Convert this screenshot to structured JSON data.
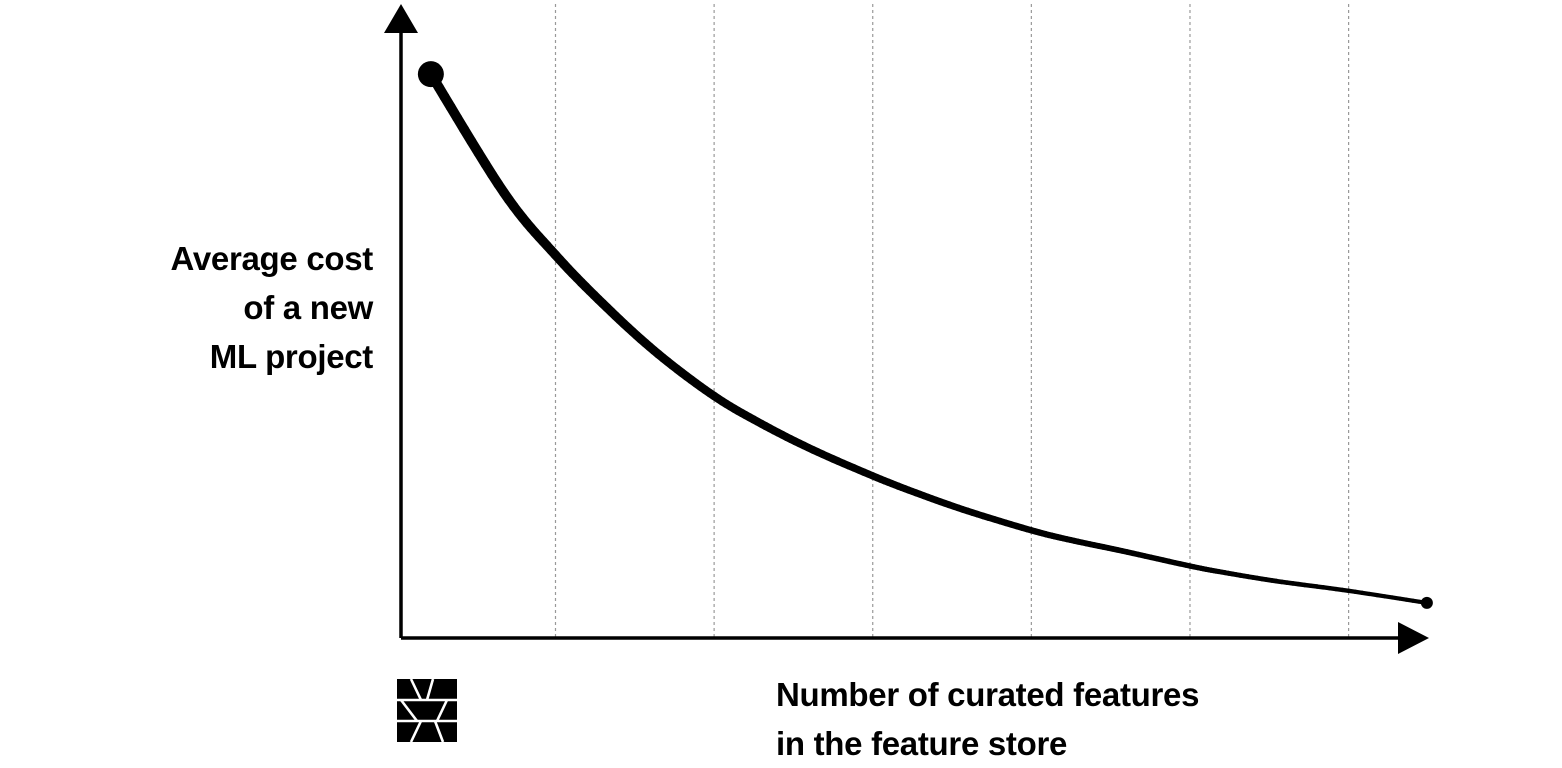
{
  "chart_data": {
    "type": "line",
    "title": "",
    "ylabel_lines": [
      "Average cost",
      "of a new",
      "ML project"
    ],
    "xlabel_lines": [
      "Number of curated features",
      "in the feature store"
    ],
    "xlim": [
      0,
      100
    ],
    "ylim": [
      0,
      100
    ],
    "x_ticks_labeled": false,
    "y_ticks_labeled": false,
    "grid": {
      "x": true,
      "y": false,
      "style": "dotted"
    },
    "x_grid_values": [
      15,
      30.4,
      45.8,
      61.2,
      76.6,
      92
    ],
    "series": [
      {
        "x": [
          2.9,
          10,
          15,
          20,
          25,
          30.4,
          35,
          40,
          45.8,
          50,
          55,
          61.2,
          65,
          70,
          76.6,
          80,
          85,
          92,
          99.6
        ],
        "y": [
          93.2,
          73.6,
          63.3,
          54.6,
          46.9,
          40.0,
          35.4,
          31.1,
          26.8,
          24.0,
          21.0,
          17.8,
          16.2,
          14.4,
          11.9,
          10.8,
          9.4,
          7.8,
          5.8
        ],
        "stroke_start": 10,
        "stroke_end": 4
      }
    ],
    "colors": {
      "line": "#000000",
      "grid": "#999999",
      "axis": "#000000"
    }
  },
  "logo": {
    "name": "publisher-logo"
  }
}
